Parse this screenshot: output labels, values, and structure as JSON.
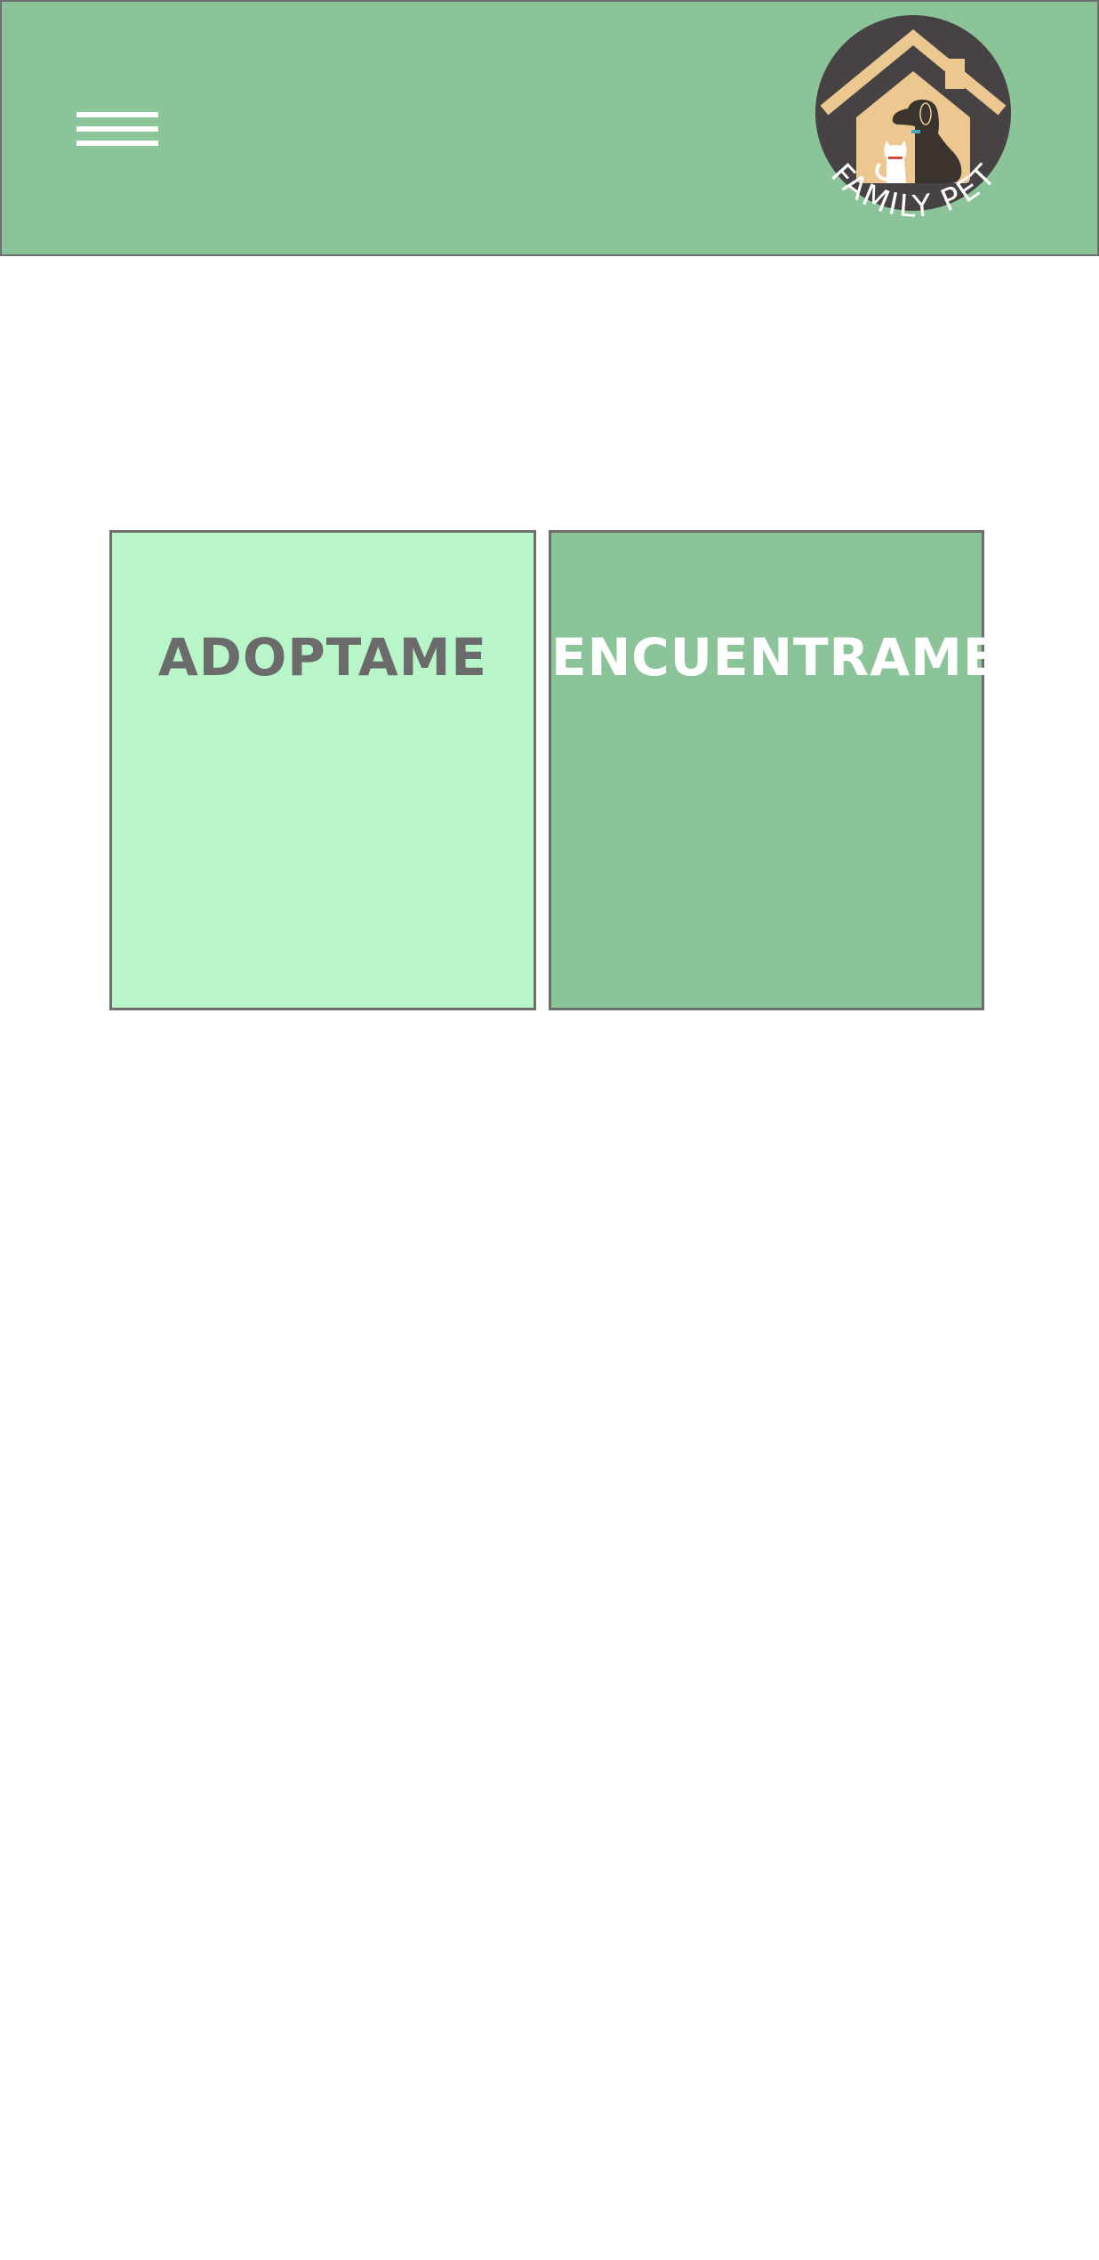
{
  "header": {
    "background": "#8bc499",
    "menu_icon": "hamburger-menu-icon",
    "logo": {
      "text": "FAMILY PET",
      "icon": "house-dog-cat-icon",
      "circle_color": "#474344",
      "house_color": "#ecc890",
      "dog_color": "#3b342e",
      "cat_color": "#ffffff"
    }
  },
  "cards": {
    "adopt": {
      "label": "ADOPTAME",
      "background": "#b8f5c9",
      "text_color": "#6b6b6b"
    },
    "find": {
      "label": "ENCUENTRAME",
      "background": "#8bc499",
      "text_color": "#ffffff"
    }
  }
}
